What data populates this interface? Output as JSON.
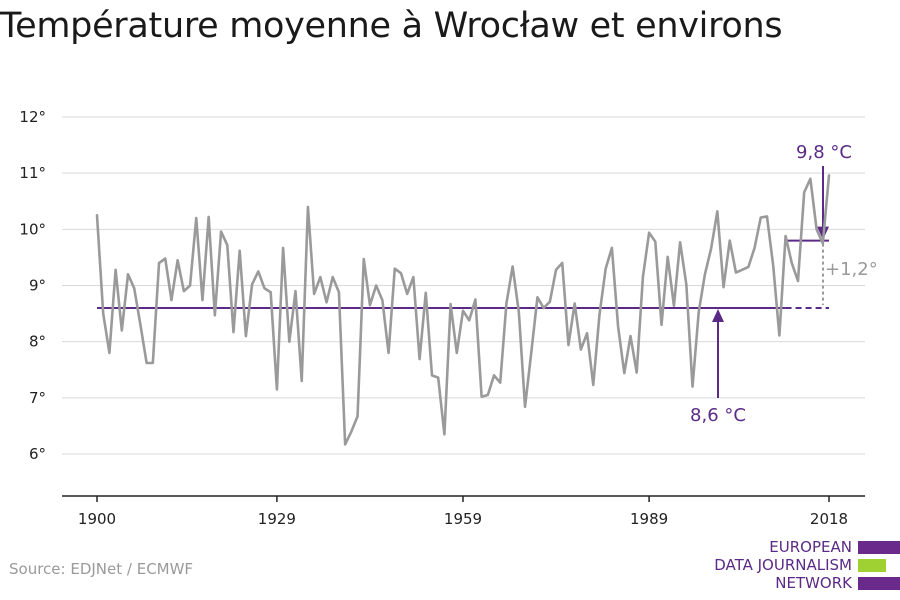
{
  "title": "Température moyenne à Wrocław et environs",
  "source": "Source: EDJNet / ECMWF",
  "logo": {
    "line1": "EUROPEAN",
    "line2": "DATA JOURNALISM",
    "line3": "NETWORK"
  },
  "colors": {
    "series": "#9a9a9a",
    "accent": "#5b2a86",
    "logo_green": "#9fd132",
    "grid": "#d9d9d9"
  },
  "chart_data": {
    "type": "line",
    "title": "Température moyenne à Wrocław et environs",
    "xlabel": "",
    "ylabel": "",
    "x_ticks": [
      "1900",
      "1929",
      "1959",
      "1989",
      "2018"
    ],
    "y_ticks": [
      "6°",
      "7°",
      "8°",
      "9°",
      "10°",
      "11°",
      "12°"
    ],
    "xlim": [
      1900,
      2018
    ],
    "ylim": [
      5.2,
      12.3
    ],
    "grid": true,
    "series": [
      {
        "name": "",
        "x": [
          1900,
          1901,
          1902,
          1903,
          1904,
          1905,
          1906,
          1907,
          1908,
          1909,
          1910,
          1911,
          1912,
          1913,
          1914,
          1915,
          1916,
          1917,
          1918,
          1919,
          1920,
          1921,
          1922,
          1923,
          1924,
          1925,
          1926,
          1927,
          1928,
          1929,
          1930,
          1931,
          1932,
          1933,
          1934,
          1935,
          1936,
          1937,
          1938,
          1939,
          1940,
          1941,
          1942,
          1943,
          1944,
          1945,
          1946,
          1947,
          1948,
          1949,
          1950,
          1951,
          1952,
          1953,
          1954,
          1955,
          1956,
          1957,
          1958,
          1959,
          1960,
          1961,
          1962,
          1963,
          1964,
          1965,
          1966,
          1967,
          1968,
          1969,
          1970,
          1971,
          1972,
          1973,
          1974,
          1975,
          1976,
          1977,
          1978,
          1979,
          1980,
          1981,
          1982,
          1983,
          1984,
          1985,
          1986,
          1987,
          1988,
          1989,
          1990,
          1991,
          1992,
          1993,
          1994,
          1995,
          1996,
          1997,
          1998,
          1999,
          2000,
          2001,
          2002,
          2003,
          2004,
          2005,
          2006,
          2007,
          2008,
          2009,
          2010,
          2011,
          2012,
          2013,
          2014,
          2015,
          2016,
          2017,
          2018
        ],
        "values": [
          10.25,
          8.5,
          7.8,
          9.28,
          8.2,
          9.2,
          8.95,
          8.3,
          7.62,
          7.62,
          9.4,
          9.48,
          8.74,
          9.45,
          8.9,
          9.0,
          10.2,
          8.74,
          10.22,
          8.47,
          9.96,
          9.72,
          8.17,
          9.62,
          8.1,
          9.02,
          9.25,
          8.95,
          8.88,
          7.15,
          9.67,
          8.0,
          8.9,
          7.3,
          10.4,
          8.85,
          9.15,
          8.7,
          9.15,
          8.88,
          6.17,
          6.4,
          6.67,
          9.47,
          8.65,
          9.0,
          8.74,
          7.8,
          9.3,
          9.22,
          8.85,
          9.15,
          7.69,
          8.87,
          7.4,
          7.36,
          6.35,
          8.67,
          7.8,
          8.55,
          8.38,
          8.75,
          7.02,
          7.05,
          7.4,
          7.27,
          8.68,
          9.34,
          8.53,
          6.84,
          7.8,
          8.79,
          8.6,
          8.71,
          9.28,
          9.4,
          7.94,
          8.68,
          7.86,
          8.15,
          7.23,
          8.48,
          9.3,
          9.67,
          8.27,
          7.44,
          8.1,
          7.45,
          9.15,
          9.94,
          9.78,
          8.3,
          9.51,
          8.64,
          9.77,
          9.02,
          7.2,
          8.53,
          9.2,
          9.66,
          10.32,
          8.97,
          9.8,
          9.23,
          9.28,
          9.33,
          9.67,
          10.21,
          10.23,
          9.36,
          8.11,
          9.88,
          9.4,
          9.08,
          10.66,
          10.9,
          10.0,
          9.75,
          10.96
        ]
      }
    ],
    "baseline": {
      "value": 8.6,
      "label": "8,6 °C"
    },
    "recent": {
      "value": 9.8,
      "label": "9,8 °C"
    },
    "difference": {
      "label": "+1,2°"
    }
  }
}
